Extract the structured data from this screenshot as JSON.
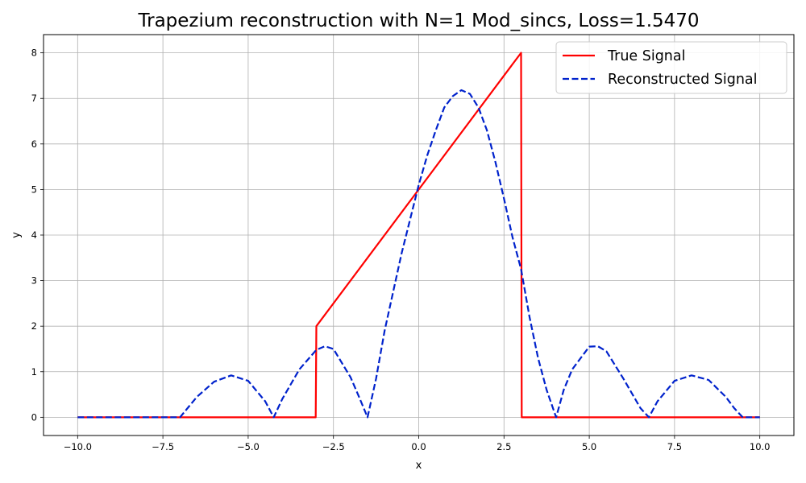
{
  "chart_data": {
    "type": "line",
    "title": "Trapezium reconstruction with N=1 Mod_sincs, Loss=1.5470",
    "xlabel": "x",
    "ylabel": "y",
    "xlim": [
      -11,
      11
    ],
    "ylim": [
      -0.4,
      8.4
    ],
    "xticks": [
      -10.0,
      -7.5,
      -5.0,
      -2.5,
      0.0,
      2.5,
      5.0,
      7.5,
      10.0
    ],
    "xtick_labels": [
      "−10.0",
      "−7.5",
      "−5.0",
      "−2.5",
      "0.0",
      "2.5",
      "5.0",
      "7.5",
      "10.0"
    ],
    "yticks": [
      0,
      1,
      2,
      3,
      4,
      5,
      6,
      7,
      8
    ],
    "ytick_labels": [
      "0",
      "1",
      "2",
      "3",
      "4",
      "5",
      "6",
      "7",
      "8"
    ],
    "grid": true,
    "legend_position": "top-right",
    "series": [
      {
        "name": "True Signal",
        "color": "#ff0000",
        "style": "solid",
        "x": [
          -10,
          -3.02,
          -3.0,
          3.0,
          3.02,
          10
        ],
        "y": [
          0,
          0,
          2,
          8,
          0,
          0
        ]
      },
      {
        "name": "Reconstructed Signal",
        "color": "#0022cc",
        "style": "dashed",
        "x": [
          -10,
          -7.0,
          -6.5,
          -6.0,
          -5.5,
          -5.0,
          -4.5,
          -4.25,
          -4.0,
          -3.5,
          -3.0,
          -2.75,
          -2.5,
          -2.0,
          -1.75,
          -1.5,
          -1.25,
          -1.0,
          -0.5,
          0.0,
          0.25,
          0.5,
          0.75,
          1.0,
          1.25,
          1.5,
          1.75,
          2.0,
          2.25,
          2.5,
          2.75,
          3.0,
          3.25,
          3.5,
          3.75,
          4.03,
          4.25,
          4.5,
          5.0,
          5.25,
          5.5,
          6.0,
          6.5,
          6.75,
          7.0,
          7.5,
          8.0,
          8.5,
          9.0,
          9.25,
          9.5,
          10
        ],
        "y": [
          0,
          0,
          0.45,
          0.78,
          0.92,
          0.8,
          0.35,
          0,
          0.4,
          1.05,
          1.48,
          1.56,
          1.5,
          0.88,
          0.45,
          0,
          0.85,
          1.9,
          3.6,
          5.1,
          5.75,
          6.3,
          6.8,
          7.05,
          7.18,
          7.1,
          6.8,
          6.3,
          5.6,
          4.8,
          3.95,
          3.25,
          2.2,
          1.3,
          0.6,
          0,
          0.6,
          1.05,
          1.55,
          1.56,
          1.45,
          0.85,
          0.2,
          0,
          0.35,
          0.8,
          0.92,
          0.82,
          0.45,
          0.2,
          0,
          0
        ]
      }
    ]
  }
}
